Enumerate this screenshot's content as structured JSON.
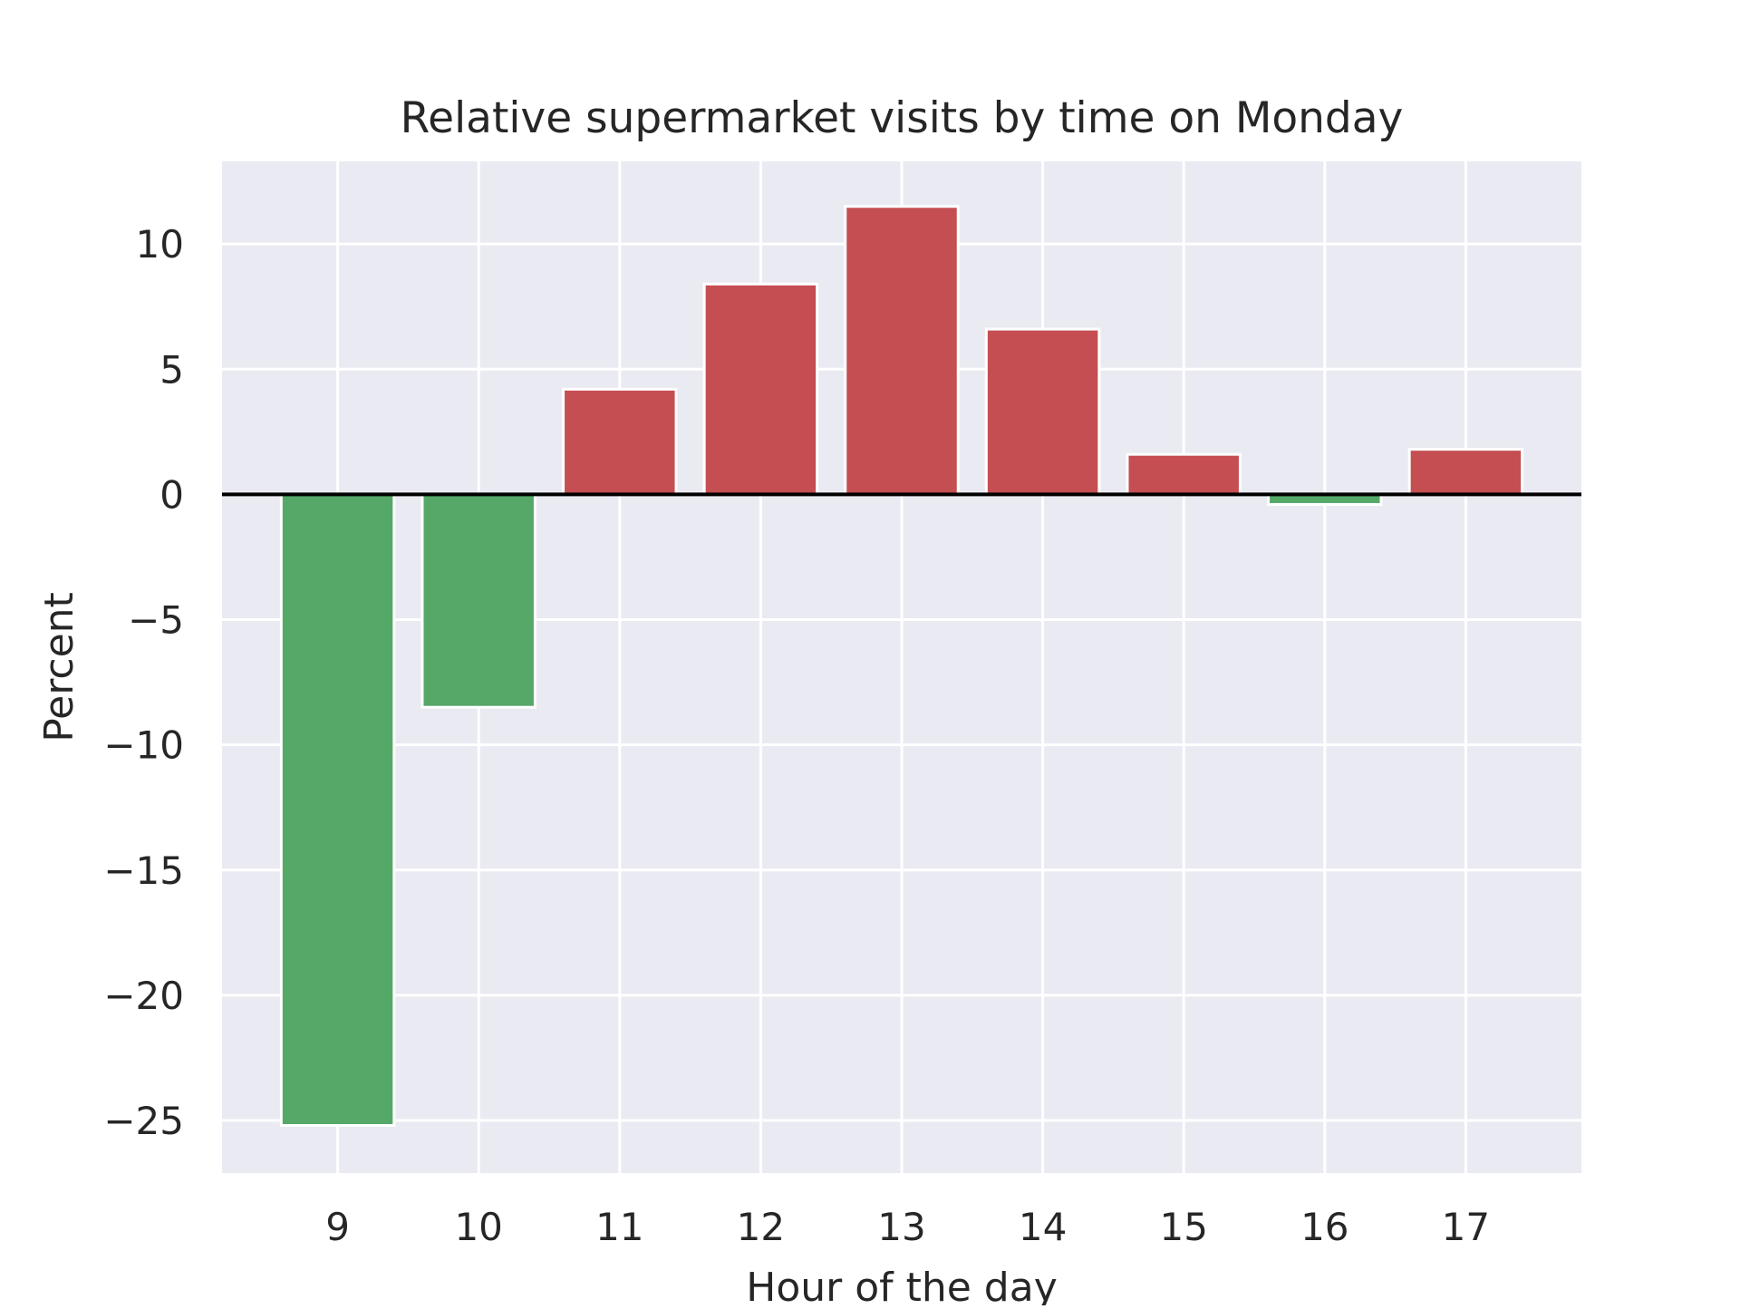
{
  "chart_data": {
    "type": "bar",
    "title": "Relative supermarket visits by time on Monday",
    "xlabel": "Hour of the day",
    "ylabel": "Percent",
    "categories": [
      "9",
      "10",
      "11",
      "12",
      "13",
      "14",
      "15",
      "16",
      "17"
    ],
    "values": [
      -25.2,
      -8.5,
      4.2,
      8.4,
      11.5,
      6.6,
      1.6,
      -0.4,
      1.8
    ],
    "ylim": [
      -27.1,
      13.3
    ],
    "yticks": [
      10,
      5,
      0,
      -5,
      -10,
      -15,
      -20,
      -25
    ],
    "ytick_labels": [
      "10",
      "5",
      "0",
      "−5",
      "−10",
      "−15",
      "−20",
      "−25"
    ],
    "grid": true,
    "zero_line": true,
    "colors": {
      "positive": "#c44e52",
      "negative": "#55a868",
      "plot_background": "#eaeaf2",
      "grid": "#ffffff",
      "zero_line": "#000000",
      "text": "#262626"
    }
  }
}
